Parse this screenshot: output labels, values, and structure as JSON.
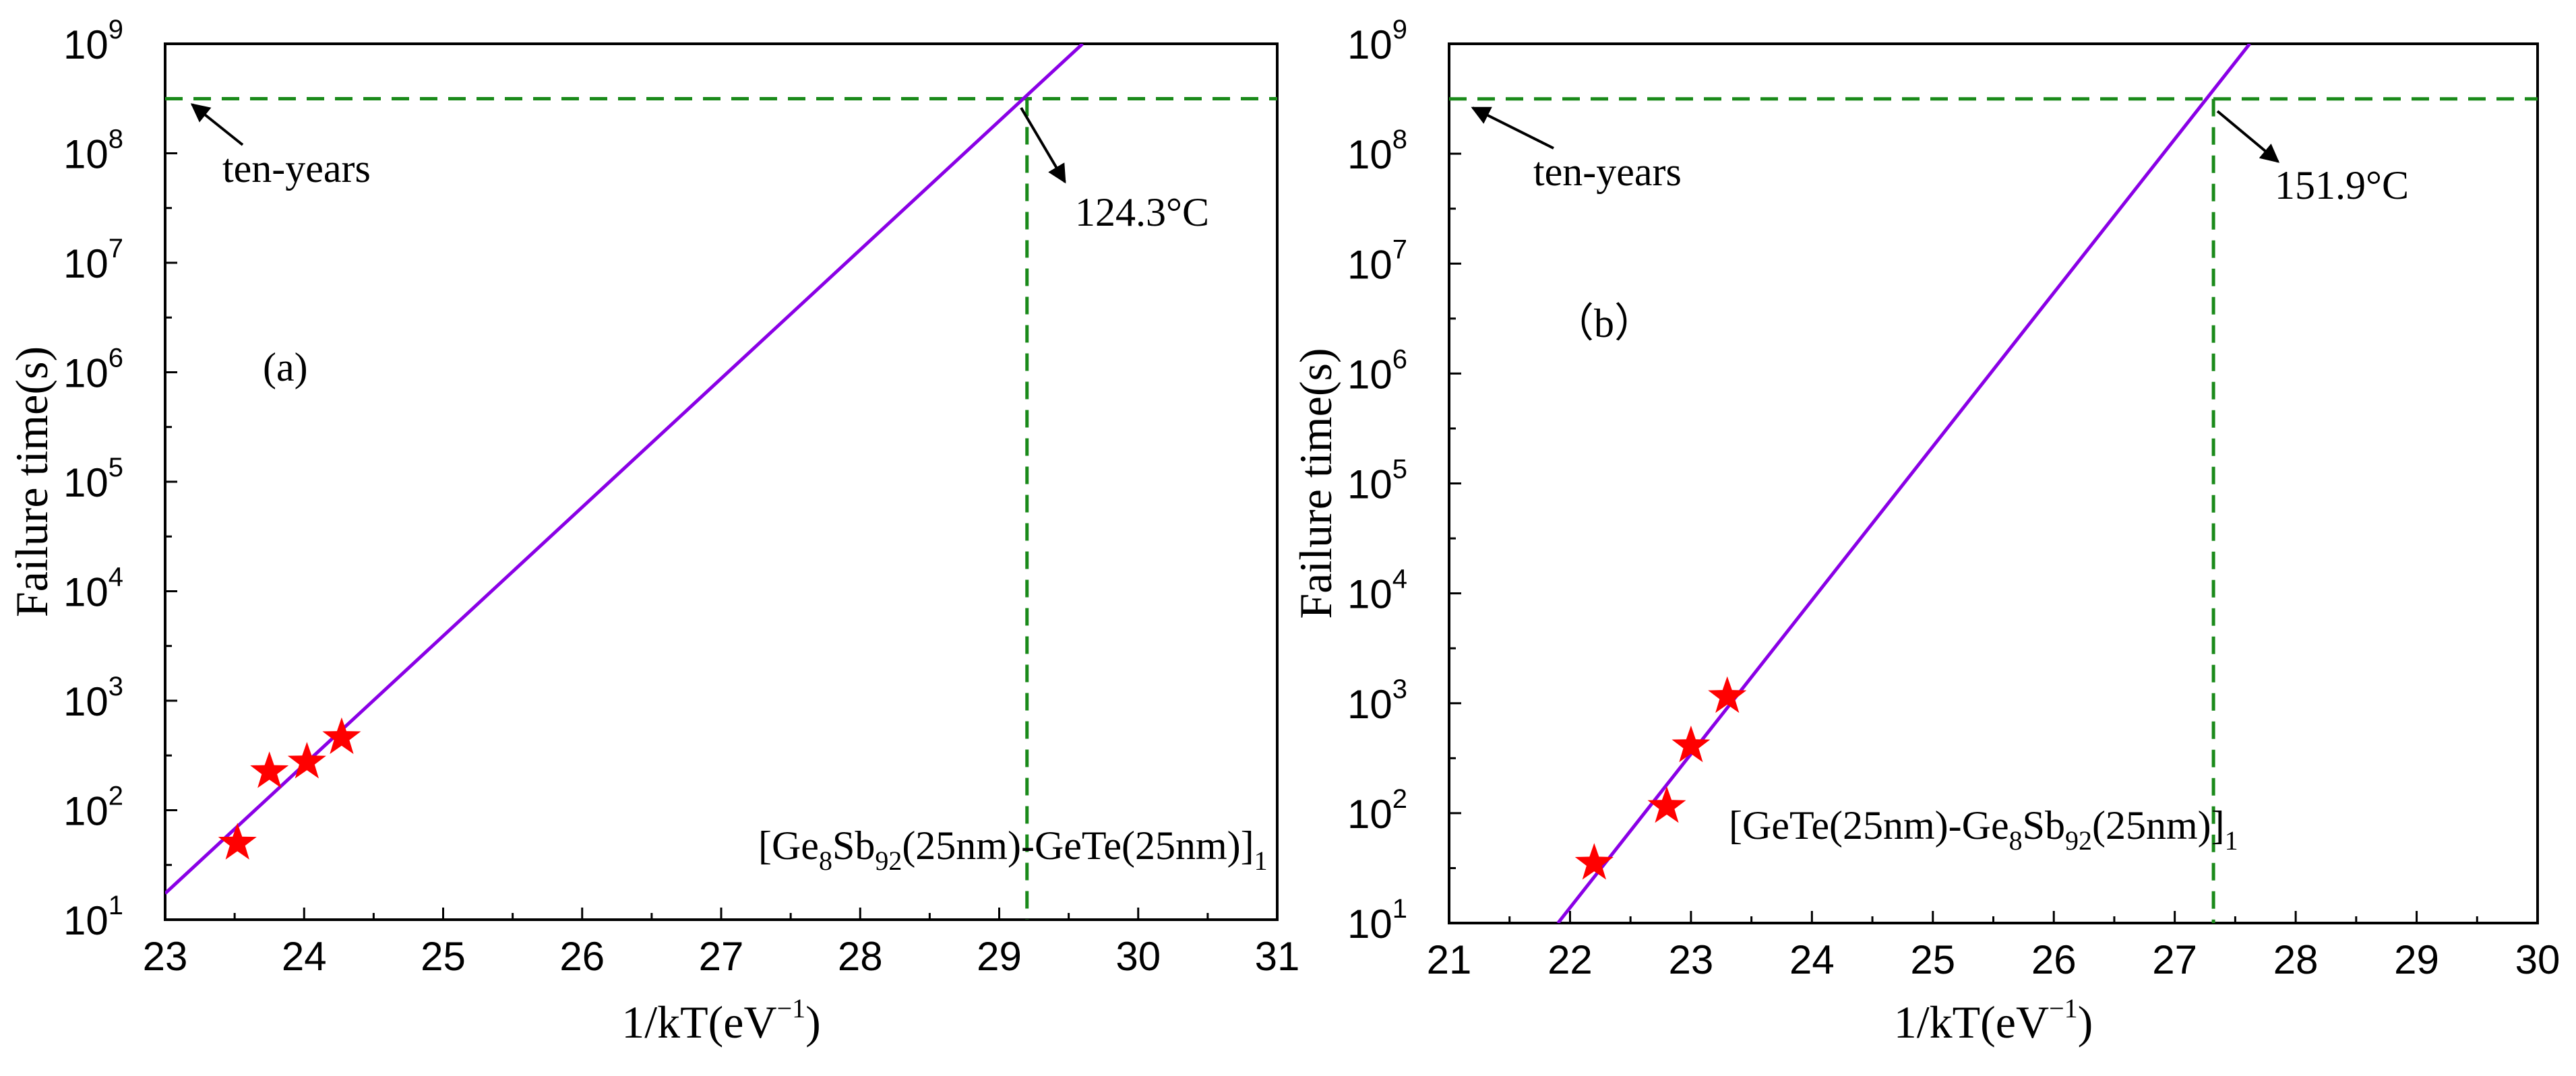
{
  "chart_data": [
    {
      "type": "scatter",
      "panel_label": "(a)",
      "xlabel": "1/kT(eV",
      "xlabel_sup": "−1",
      "xlabel_close": ")",
      "ylabel": "Failure time(s)",
      "xlim": [
        23,
        31
      ],
      "xticks": [
        23,
        24,
        25,
        26,
        27,
        28,
        29,
        30,
        31
      ],
      "ylim_log10": [
        1,
        9
      ],
      "yticks": [
        {
          "base": "10",
          "exp": "1"
        },
        {
          "base": "10",
          "exp": "2"
        },
        {
          "base": "10",
          "exp": "3"
        },
        {
          "base": "10",
          "exp": "4"
        },
        {
          "base": "10",
          "exp": "5"
        },
        {
          "base": "10",
          "exp": "6"
        },
        {
          "base": "10",
          "exp": "7"
        },
        {
          "base": "10",
          "exp": "8"
        },
        {
          "base": "10",
          "exp": "9"
        }
      ],
      "points": [
        {
          "x": 23.52,
          "y": 50
        },
        {
          "x": 23.75,
          "y": 225
        },
        {
          "x": 24.02,
          "y": 275
        },
        {
          "x": 24.27,
          "y": 460
        }
      ],
      "fit_line": {
        "x0": 23.0,
        "log_y0": 1.24,
        "x1": 29.6,
        "log_y1": 9.0
      },
      "ten_year_seconds": 315360000,
      "crossing_x": 29.2,
      "ten_years_label": "ten-years",
      "temp_label": "124.3°C",
      "formula": [
        "[Ge",
        "8",
        "Sb",
        "92",
        "(25nm)-GeTe(25nm)]",
        "1"
      ]
    },
    {
      "type": "scatter",
      "panel_label": "（b）",
      "xlabel": "1/kT(eV",
      "xlabel_sup": "−1",
      "xlabel_close": ")",
      "ylabel": "Failure time(s)",
      "xlim": [
        21,
        30
      ],
      "xticks": [
        21,
        22,
        23,
        24,
        25,
        26,
        27,
        28,
        29,
        30
      ],
      "ylim_log10": [
        1,
        9
      ],
      "yticks": [
        {
          "base": "10",
          "exp": "1"
        },
        {
          "base": "10",
          "exp": "2"
        },
        {
          "base": "10",
          "exp": "3"
        },
        {
          "base": "10",
          "exp": "4"
        },
        {
          "base": "10",
          "exp": "5"
        },
        {
          "base": "10",
          "exp": "6"
        },
        {
          "base": "10",
          "exp": "7"
        },
        {
          "base": "10",
          "exp": "8"
        },
        {
          "base": "10",
          "exp": "9"
        }
      ],
      "points": [
        {
          "x": 22.2,
          "y": 35
        },
        {
          "x": 22.8,
          "y": 115
        },
        {
          "x": 23.0,
          "y": 410
        },
        {
          "x": 23.3,
          "y": 1150
        }
      ],
      "fit_line": {
        "x0": 21.9,
        "log_y0": 1.0,
        "x1": 27.62,
        "log_y1": 9.0
      },
      "ten_year_seconds": 315360000,
      "crossing_x": 27.32,
      "ten_years_label": "ten-years",
      "temp_label": "151.9°C",
      "formula": [
        "[GeTe(25nm)-Ge",
        "8",
        "Sb",
        "92",
        "(25nm)]",
        "1"
      ]
    }
  ],
  "colors": {
    "fit_line": "#8a00e6",
    "guide": "#1a8a1a",
    "marker": "#ff0000",
    "axis": "#000000"
  }
}
